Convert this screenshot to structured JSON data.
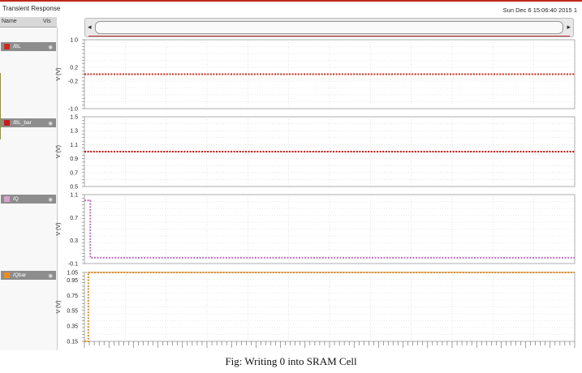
{
  "window": {
    "title": "Transient Response",
    "datetime": "Sun Dec 6 15:06:40 2015",
    "page": "1",
    "col_name": "Name",
    "col_vis": "Vis",
    "eye_icon": "eye-icon"
  },
  "caption": "Fig: Writing 0 into SRAM Cell",
  "chart_data": [
    {
      "type": "line",
      "signal": "/BL",
      "color": "#cc2a1e",
      "swatch": "#cc2a1e",
      "ylabel": "V (V)",
      "ylim": [
        -1.0,
        1.0
      ],
      "yticks": [
        "1.0",
        "0.2",
        "-0.2",
        "-1.0"
      ],
      "tickvals": [
        1.0,
        0.2,
        -0.2,
        -1.0
      ],
      "step": null,
      "level": 0.0
    },
    {
      "type": "line",
      "signal": "/BL_bar",
      "color": "#cc0000",
      "swatch": "#cc1a1a",
      "ylabel": "V (V)",
      "ylim": [
        0.5,
        1.5
      ],
      "yticks": [
        "1.5",
        "1.3",
        "1.1",
        "0.9",
        "0.7",
        "0.5"
      ],
      "tickvals": [
        1.5,
        1.3,
        1.1,
        0.9,
        0.7,
        0.5
      ],
      "step": null,
      "level": 1.0
    },
    {
      "type": "line",
      "signal": "/Q",
      "color": "#c070c0",
      "swatch": "#d8a0d0",
      "ylabel": "V (V)",
      "ylim": [
        -0.1,
        1.1
      ],
      "yticks": [
        "1.1",
        "0.7",
        "0.3",
        "-0.1"
      ],
      "tickvals": [
        1.1,
        0.7,
        0.3,
        -0.1
      ],
      "step": {
        "from": 1.0,
        "to": 0.0,
        "at": 0.012
      },
      "level": 0.0
    },
    {
      "type": "line",
      "signal": "/Qbar",
      "color": "#e88a10",
      "swatch": "#f08c1e",
      "ylabel": "V (V)",
      "ylim": [
        0.15,
        1.05
      ],
      "yticks": [
        "1.05",
        "0.95",
        "0.75",
        "0.55",
        "0.35",
        "0.15"
      ],
      "tickvals": [
        1.05,
        0.95,
        0.75,
        0.55,
        0.35,
        0.15
      ],
      "step": {
        "from": 0.15,
        "to": 1.05,
        "at": 0.008
      },
      "level": 1.05
    }
  ]
}
